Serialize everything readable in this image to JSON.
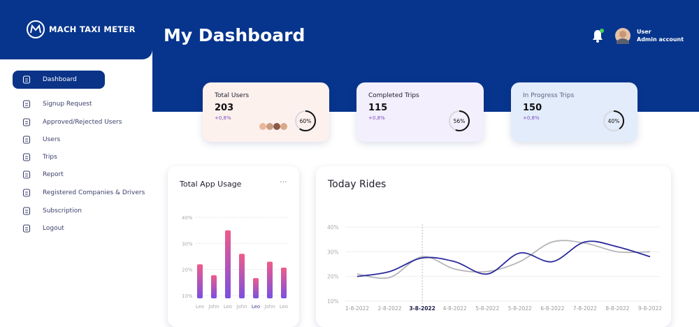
{
  "brand": "MACH TAXI METER",
  "sidebar": {
    "items": [
      {
        "label": "Dashboard",
        "active": true
      },
      {
        "label": "Signup Request",
        "active": false
      },
      {
        "label": "Approved/Rejected Users",
        "active": false
      },
      {
        "label": "Users",
        "active": false
      },
      {
        "label": "Trips",
        "active": false
      },
      {
        "label": "Report",
        "active": false
      },
      {
        "label": "Registered Companies & Drivers",
        "active": false
      },
      {
        "label": "Subscription",
        "active": false
      },
      {
        "label": "Logout",
        "active": false
      }
    ]
  },
  "header": {
    "title": "My Dashboard",
    "user": {
      "name": "User",
      "role": "Admin account"
    }
  },
  "stats": [
    {
      "title": "Total Users",
      "value": 203,
      "change": "+0,8%",
      "progress": 60,
      "progress_label": "60%",
      "color": "#fdf1ee"
    },
    {
      "title": "Completed Trips",
      "value": 115,
      "change": "+0,8%",
      "progress": 56,
      "progress_label": "56%",
      "color": "#f3effd"
    },
    {
      "title": "In Progress Trips",
      "value": 150,
      "change": "+0,8%",
      "progress": 40,
      "progress_label": "40%",
      "color": "#e3ecfb"
    }
  ],
  "chart_data": [
    {
      "type": "bar",
      "title": "Total App Usage",
      "categories": [
        "Leo",
        "John",
        "Leo",
        "John",
        "Leo",
        "John",
        "Leo"
      ],
      "values": [
        22,
        17.8,
        35,
        26,
        16.7,
        23,
        20.7
      ],
      "gradient": [
        "#ef5b8a",
        "#7b4fe0"
      ],
      "ylim": [
        10,
        40
      ],
      "yticks": [
        {
          "value": 10,
          "label": "10%"
        },
        {
          "value": 20,
          "label": "20%"
        },
        {
          "value": 30,
          "label": "30%"
        },
        {
          "value": 40,
          "label": "40%"
        }
      ],
      "grid": true
    },
    {
      "type": "line",
      "title": "Today Rides",
      "categories": [
        "1-8-2022",
        "2-8-2022",
        "3-8-2022",
        "4-8-2022",
        "5-8-2022",
        "5-8-2022",
        "6-8-2022",
        "7-8-2022",
        "8-8-2022",
        "9-8-2022"
      ],
      "series": [
        {
          "color": "#2b2a9c",
          "values": [
            20,
            22,
            27.5,
            26,
            21,
            29.5,
            26,
            34,
            32,
            28
          ]
        },
        {
          "color": "#b5b5b8",
          "values": [
            21,
            19.6,
            28,
            23,
            22,
            26,
            34,
            33.5,
            30,
            30
          ]
        }
      ],
      "highlighted_category": 2,
      "ylim": [
        10,
        40
      ],
      "yticks": [
        {
          "value": 10,
          "label": "10%"
        },
        {
          "value": 20,
          "label": "20%"
        },
        {
          "value": 30,
          "label": "30%"
        },
        {
          "value": 40,
          "label": "40%"
        }
      ],
      "grid": true
    }
  ]
}
